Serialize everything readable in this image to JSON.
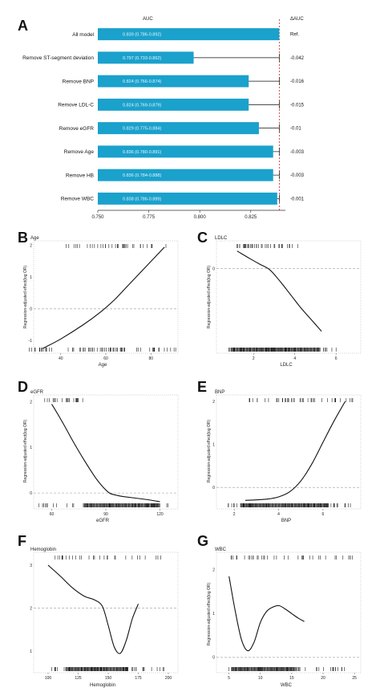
{
  "panels": {
    "A": "A",
    "B": "B",
    "C": "C",
    "D": "D",
    "E": "E",
    "F": "F",
    "G": "G"
  },
  "chart_data": [
    {
      "type": "bar",
      "panel": "A",
      "header_auc": "AUC",
      "header_delta": "ΔAUC",
      "categories": [
        "All model",
        "Remove ST-segment deviation",
        "Remove BNP",
        "Remove LDL-C",
        "Remove eGFR",
        "Remove Age",
        "Remove HB",
        "Remove WBC"
      ],
      "values": [
        0.839,
        0.797,
        0.824,
        0.824,
        0.829,
        0.836,
        0.836,
        0.838
      ],
      "value_labels": [
        "0.839 (0.786-0.892)",
        "0.797 (0.733-0.862)",
        "0.824 (0.766-0.874)",
        "0.824 (0.769-0.879)",
        "0.829 (0.775-0.884)",
        "0.836 (0.780-0.891)",
        "0.836 (0.784-0.888)",
        "0.838 (0.786-0.889)"
      ],
      "error_upper": [
        0.839,
        0.839,
        0.839,
        0.839,
        0.839,
        0.839,
        0.839,
        0.839
      ],
      "delta_labels": [
        "Ref.",
        "-0.042",
        "-0.016",
        "-0.015",
        "-0.01",
        "-0.003",
        "-0.003",
        "-0.001"
      ],
      "xticks": [
        "0.750",
        "0.775",
        "0.800",
        "0.825"
      ],
      "xtick_values": [
        0.75,
        0.775,
        0.8,
        0.825
      ],
      "xlim": [
        0.75,
        0.842
      ],
      "reference_line": 0.839,
      "bar_color": "#1aa1cc",
      "ref_line_color": "#cc2222"
    },
    {
      "type": "line",
      "panel": "B",
      "title": "Age",
      "xlabel": "Age",
      "ylabel": "Regression-adjusted effect(log OR)",
      "xticks": [
        "40",
        "60",
        "80"
      ],
      "xtick_values": [
        40,
        60,
        80
      ],
      "xlim": [
        28,
        92
      ],
      "yticks": [
        "-1",
        "0",
        "1",
        "2"
      ],
      "ytick_values": [
        -1,
        0,
        1,
        2
      ],
      "ylim": [
        -1.4,
        2.15
      ],
      "dashed_y": 0,
      "x": [
        32,
        40,
        50,
        58,
        64,
        70,
        76,
        82,
        86
      ],
      "y": [
        -1.25,
        -0.95,
        -0.5,
        -0.08,
        0.3,
        0.75,
        1.2,
        1.65,
        1.95
      ]
    },
    {
      "type": "line",
      "panel": "C",
      "title": "LDLC",
      "xlabel": "LDLC",
      "ylabel": "Regression-adjusted effect(log OR)",
      "xticks": [
        "2",
        "4",
        "6"
      ],
      "xtick_values": [
        2,
        4,
        6
      ],
      "xlim": [
        0.2,
        7.2
      ],
      "yticks": [
        "0"
      ],
      "ytick_values": [
        0
      ],
      "ylim": [
        -2.9,
        0.95
      ],
      "dashed_y": 0,
      "x": [
        1.2,
        1.8,
        2.3,
        2.8,
        3.3,
        3.8,
        4.3,
        4.8,
        5.3
      ],
      "y": [
        0.6,
        0.35,
        0.15,
        -0.05,
        -0.45,
        -0.9,
        -1.35,
        -1.75,
        -2.15
      ]
    },
    {
      "type": "line",
      "panel": "D",
      "title": "eGFR",
      "xlabel": "eGFR",
      "ylabel": "Regression-adjusted effect(log OR)",
      "xticks": [
        "60",
        "90",
        "120"
      ],
      "xtick_values": [
        60,
        90,
        120
      ],
      "xlim": [
        50,
        130
      ],
      "yticks": [
        "0",
        "1",
        "2"
      ],
      "ytick_values": [
        0,
        1,
        2
      ],
      "ylim": [
        -0.35,
        2.15
      ],
      "dashed_y": 0,
      "x": [
        60,
        66,
        72,
        78,
        84,
        88,
        92,
        96,
        100,
        110,
        120
      ],
      "y": [
        1.95,
        1.55,
        1.12,
        0.72,
        0.35,
        0.15,
        0.0,
        -0.05,
        -0.08,
        -0.13,
        -0.19
      ]
    },
    {
      "type": "line",
      "panel": "E",
      "title": "BNP",
      "xlabel": "BNP",
      "ylabel": "Regression-adjusted effect(log OR)",
      "xticks": [
        "2",
        "4",
        "6"
      ],
      "xtick_values": [
        2,
        4,
        6
      ],
      "xlim": [
        1.2,
        7.7
      ],
      "yticks": [
        "0",
        "1",
        "2"
      ],
      "ytick_values": [
        0,
        1,
        2
      ],
      "ylim": [
        -0.5,
        2.15
      ],
      "dashed_y": 0,
      "x": [
        2.5,
        3,
        3.5,
        4,
        4.5,
        5,
        5.5,
        6,
        6.5,
        7
      ],
      "y": [
        -0.3,
        -0.29,
        -0.27,
        -0.22,
        -0.1,
        0.15,
        0.55,
        1.05,
        1.55,
        2.0
      ]
    },
    {
      "type": "line",
      "panel": "F",
      "title": "Hemoglobin",
      "xlabel": "Hemoglobin",
      "ylabel": "",
      "xticks": [
        "100",
        "125",
        "150",
        "175",
        "200"
      ],
      "xtick_values": [
        100,
        125,
        150,
        175,
        200
      ],
      "xlim": [
        88,
        208
      ],
      "yticks": [
        "1",
        "2",
        "3"
      ],
      "ytick_values": [
        1,
        2,
        3
      ],
      "ylim": [
        0.5,
        3.3
      ],
      "dashed_y": 2,
      "x": [
        100,
        110,
        120,
        130,
        138,
        145,
        150,
        155,
        160,
        165,
        170,
        175
      ],
      "y": [
        3.0,
        2.75,
        2.48,
        2.28,
        2.2,
        2.05,
        1.6,
        1.1,
        0.95,
        1.25,
        1.75,
        2.1
      ]
    },
    {
      "type": "line",
      "panel": "G",
      "title": "WBC",
      "xlabel": "WBC",
      "ylabel": "Regression-adjusted effect(log OR)",
      "xticks": [
        "5",
        "10",
        "15",
        "20",
        "25"
      ],
      "xtick_values": [
        5,
        10,
        15,
        20,
        25
      ],
      "xlim": [
        3,
        26
      ],
      "yticks": [
        "0",
        "1",
        "2"
      ],
      "ytick_values": [
        0,
        1,
        2
      ],
      "ylim": [
        -0.35,
        2.4
      ],
      "dashed_y": 0,
      "x": [
        5,
        6,
        7,
        8,
        9,
        10,
        11,
        12,
        13,
        14,
        15,
        16,
        17
      ],
      "y": [
        1.85,
        1.05,
        0.4,
        0.15,
        0.35,
        0.8,
        1.05,
        1.15,
        1.18,
        1.1,
        1.0,
        0.9,
        0.82
      ]
    }
  ]
}
